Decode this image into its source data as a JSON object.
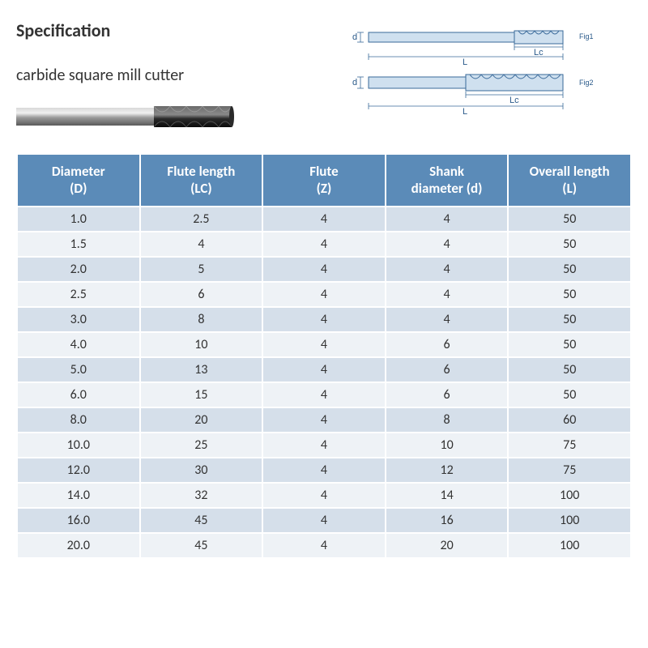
{
  "title": "Specification",
  "subtitle": "carbide square mill cutter",
  "diagramLabels": {
    "fig1": "Fig1",
    "fig2": "Fig2",
    "L": "L",
    "Lc": "Lc",
    "d": "d"
  },
  "table": {
    "headerBg": "#5b8bb8",
    "rowEvenBg": "#d5dfea",
    "rowOddBg": "#eef2f6",
    "columns": [
      {
        "line1": "Diameter",
        "line2": "(D)"
      },
      {
        "line1": "Flute length",
        "line2": "(LC)"
      },
      {
        "line1": "Flute",
        "line2": "(Z)"
      },
      {
        "line1": "Shank",
        "line2": "diameter (d)"
      },
      {
        "line1": "Overall length",
        "line2": "(L)"
      }
    ],
    "rows": [
      [
        "1.0",
        "2.5",
        "4",
        "4",
        "50"
      ],
      [
        "1.5",
        "4",
        "4",
        "4",
        "50"
      ],
      [
        "2.0",
        "5",
        "4",
        "4",
        "50"
      ],
      [
        "2.5",
        "6",
        "4",
        "4",
        "50"
      ],
      [
        "3.0",
        "8",
        "4",
        "4",
        "50"
      ],
      [
        "4.0",
        "10",
        "4",
        "6",
        "50"
      ],
      [
        "5.0",
        "13",
        "4",
        "6",
        "50"
      ],
      [
        "6.0",
        "15",
        "4",
        "6",
        "50"
      ],
      [
        "8.0",
        "20",
        "4",
        "8",
        "60"
      ],
      [
        "10.0",
        "25",
        "4",
        "10",
        "75"
      ],
      [
        "12.0",
        "30",
        "4",
        "12",
        "75"
      ],
      [
        "14.0",
        "32",
        "4",
        "14",
        "100"
      ],
      [
        "16.0",
        "45",
        "4",
        "16",
        "100"
      ],
      [
        "20.0",
        "45",
        "4",
        "20",
        "100"
      ]
    ]
  },
  "productImage": {
    "shankColor1": "#b8b8b8",
    "shankColor2": "#6a6a6a",
    "fluteColor1": "#4a4a4a",
    "fluteColor2": "#1a1a1a"
  },
  "diagramStyle": {
    "stroke": "#3a6a9a",
    "fill": "#bcd2e6"
  }
}
